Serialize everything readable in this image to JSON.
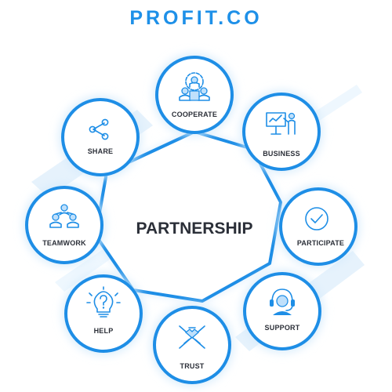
{
  "brand": {
    "logo_text": "PROFIT.CO"
  },
  "colors": {
    "accent": "#1e8ee6",
    "glow": "#d6ebfb",
    "text": "#2b2f38"
  },
  "diagram": {
    "center": {
      "label": "PARTNERSHIP"
    },
    "nodes": [
      {
        "label": "COOPERATE",
        "icon": "team-gear-icon"
      },
      {
        "label": "BUSINESS",
        "icon": "presentation-icon"
      },
      {
        "label": "PARTICIPATE",
        "icon": "check-circle-icon"
      },
      {
        "label": "SUPPORT",
        "icon": "headset-icon"
      },
      {
        "label": "TRUST",
        "icon": "handshake-icon"
      },
      {
        "label": "HELP",
        "icon": "lightbulb-question-icon"
      },
      {
        "label": "TEAMWORK",
        "icon": "team-icon"
      },
      {
        "label": "SHARE",
        "icon": "share-icon"
      }
    ]
  }
}
